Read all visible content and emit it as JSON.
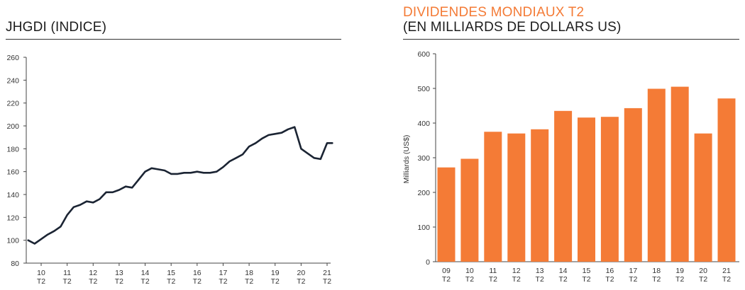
{
  "chart_data": [
    {
      "type": "line",
      "title": "JHGDI (INDICE)",
      "xlabel": "",
      "ylabel": "",
      "ylim": [
        80,
        260
      ],
      "yticks": [
        80,
        100,
        120,
        140,
        160,
        180,
        200,
        220,
        240,
        260
      ],
      "xticks": [
        {
          "x": 10,
          "top": "10",
          "bottom": "T2"
        },
        {
          "x": 11,
          "top": "11",
          "bottom": "T2"
        },
        {
          "x": 12,
          "top": "12",
          "bottom": "T2"
        },
        {
          "x": 13,
          "top": "13",
          "bottom": "T2"
        },
        {
          "x": 14,
          "top": "14",
          "bottom": "T2"
        },
        {
          "x": 15,
          "top": "15",
          "bottom": "T2"
        },
        {
          "x": 16,
          "top": "16",
          "bottom": "T2"
        },
        {
          "x": 17,
          "top": "17",
          "bottom": "T2"
        },
        {
          "x": 18,
          "top": "18",
          "bottom": "T2"
        },
        {
          "x": 19,
          "top": "19",
          "bottom": "T2"
        },
        {
          "x": 20,
          "top": "20",
          "bottom": "T2"
        },
        {
          "x": 21,
          "top": "21",
          "bottom": "T2"
        }
      ],
      "xlim": [
        9.5,
        21.2
      ],
      "series": [
        {
          "name": "JHGDI",
          "color": "#1b2433",
          "x": [
            9.5,
            9.75,
            10.0,
            10.25,
            10.5,
            10.75,
            11.0,
            11.25,
            11.5,
            11.75,
            12.0,
            12.25,
            12.5,
            12.75,
            13.0,
            13.25,
            13.5,
            13.75,
            14.0,
            14.25,
            14.5,
            14.75,
            15.0,
            15.25,
            15.5,
            15.75,
            16.0,
            16.25,
            16.5,
            16.75,
            17.0,
            17.25,
            17.5,
            17.75,
            18.0,
            18.25,
            18.5,
            18.75,
            19.0,
            19.25,
            19.5,
            19.75,
            20.0,
            20.25,
            20.5,
            20.75,
            21.0,
            21.2
          ],
          "y": [
            100,
            97,
            101,
            105,
            108,
            112,
            122,
            129,
            131,
            134,
            133,
            136,
            142,
            142,
            144,
            147,
            146,
            153,
            160,
            163,
            162,
            161,
            158,
            158,
            159,
            159,
            160,
            159,
            159,
            160,
            164,
            169,
            172,
            175,
            182,
            185,
            189,
            192,
            193,
            194,
            197,
            199,
            180,
            176,
            172,
            171,
            185,
            185
          ]
        }
      ]
    },
    {
      "type": "bar",
      "title": "DIVIDENDES MONDIAUX T2",
      "subtitle": "(EN MILLIARDS DE DOLLARS US)",
      "xlabel": "",
      "ylabel": "Milliards (US$)",
      "ylim": [
        0,
        600
      ],
      "yticks": [
        0,
        100,
        200,
        300,
        400,
        500,
        600
      ],
      "categories": [
        {
          "top": "09",
          "bottom": "T2"
        },
        {
          "top": "10",
          "bottom": "T2"
        },
        {
          "top": "11",
          "bottom": "T2"
        },
        {
          "top": "12",
          "bottom": "T2"
        },
        {
          "top": "13",
          "bottom": "T2"
        },
        {
          "top": "14",
          "bottom": "T2"
        },
        {
          "top": "15",
          "bottom": "T2"
        },
        {
          "top": "16",
          "bottom": "T2"
        },
        {
          "top": "17",
          "bottom": "T2"
        },
        {
          "top": "18",
          "bottom": "T2"
        },
        {
          "top": "19",
          "bottom": "T2"
        },
        {
          "top": "20",
          "bottom": "T2"
        },
        {
          "top": "21",
          "bottom": "T2"
        }
      ],
      "values": [
        272,
        297,
        375,
        370,
        382,
        435,
        416,
        418,
        443,
        499,
        505,
        370,
        471
      ],
      "color": "#f47b36"
    }
  ],
  "titles": {
    "left": "JHGDI (INDICE)",
    "right_line1": "DIVIDENDES MONDIAUX T2",
    "right_line2": "(EN MILLIARDS DE DOLLARS US)"
  }
}
